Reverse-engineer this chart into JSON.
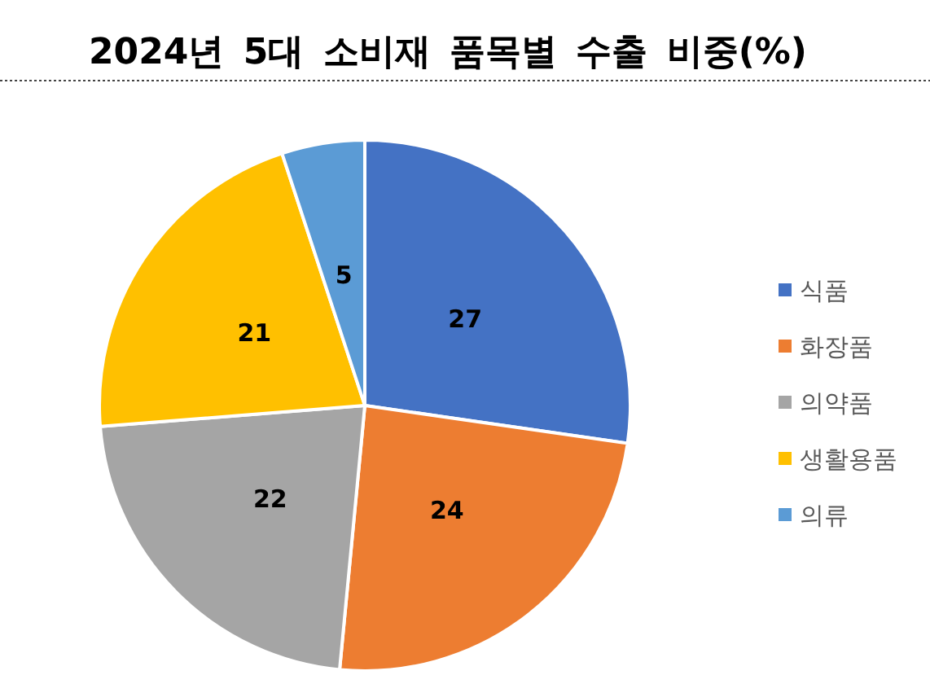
{
  "chart_data": {
    "type": "pie",
    "title": "2024년 5대 소비재 품목별 수출 비중(%)",
    "categories": [
      "식품",
      "화장품",
      "의약품",
      "생활용품",
      "의류"
    ],
    "values": [
      27,
      24,
      22,
      21,
      5
    ],
    "colors": [
      "#4472c4",
      "#ed7d31",
      "#a5a5a5",
      "#ffc000",
      "#5b9bd5"
    ],
    "data_labels": true,
    "legend": "right"
  }
}
